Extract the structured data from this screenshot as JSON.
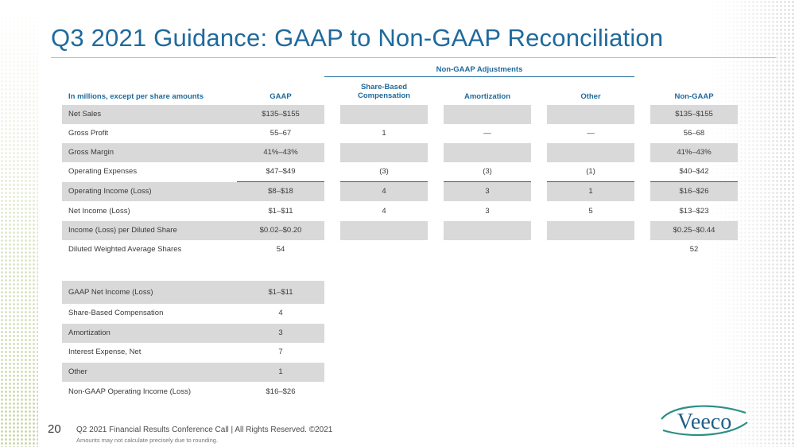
{
  "title": "Q3 2021 Guidance: GAAP to Non-GAAP Reconciliation",
  "adjustments_header": "Non-GAAP Adjustments",
  "columns": {
    "label": "In millions, except per share amounts",
    "gaap": "GAAP",
    "sbc_line1": "Share-Based",
    "sbc_line2": "Compensation",
    "amortization": "Amortization",
    "other": "Other",
    "non_gaap": "Non-GAAP"
  },
  "rows": [
    {
      "label": "Net Sales",
      "gaap": "$135–$155",
      "sbc": "",
      "amort": "",
      "other": "",
      "non_gaap": "$135–$155"
    },
    {
      "label": "Gross Profit",
      "gaap": "55–67",
      "sbc": "1",
      "amort": "—",
      "other": "—",
      "non_gaap": "56–68"
    },
    {
      "label": "Gross Margin",
      "gaap": "41%–43%",
      "sbc": "",
      "amort": "",
      "other": "",
      "non_gaap": "41%–43%"
    },
    {
      "label": "Operating Expenses",
      "gaap": "$47–$49",
      "sbc": "(3)",
      "amort": "(3)",
      "other": "(1)",
      "non_gaap": "$40–$42"
    },
    {
      "label": "Operating Income (Loss)",
      "gaap": "$8–$18",
      "sbc": "4",
      "amort": "3",
      "other": "1",
      "non_gaap": "$16–$26"
    },
    {
      "label": "Net Income (Loss)",
      "gaap": "$1–$11",
      "sbc": "4",
      "amort": "3",
      "other": "5",
      "non_gaap": "$13–$23"
    },
    {
      "label": "Income (Loss) per Diluted Share",
      "gaap": "$0.02–$0.20",
      "sbc": "",
      "amort": "",
      "other": "",
      "non_gaap": "$0.25–$0.44"
    },
    {
      "label": "Diluted Weighted Average Shares",
      "gaap": "54",
      "sbc": "",
      "amort": "",
      "other": "",
      "non_gaap": "52"
    }
  ],
  "reconciliation": [
    {
      "label": "GAAP Net Income (Loss)",
      "value": "$1–$11"
    },
    {
      "label": "Share-Based Compensation",
      "value": "4"
    },
    {
      "label": "Amortization",
      "value": "3"
    },
    {
      "label": "Interest Expense, Net",
      "value": "7"
    },
    {
      "label": "Other",
      "value": "1"
    },
    {
      "label": "Non-GAAP Operating Income (Loss)",
      "value": "$16–$26"
    }
  ],
  "footer": {
    "page_number": "20",
    "text": "Q2 2021 Financial Results Conference Call  |  All Rights Reserved. ©2021",
    "note": "Amounts may not calculate precisely due to rounding."
  },
  "logo_text": "Veeco",
  "colors": {
    "title": "#1f6a9c",
    "shade": "#d9d9d9",
    "logo": "#2b8f86"
  }
}
